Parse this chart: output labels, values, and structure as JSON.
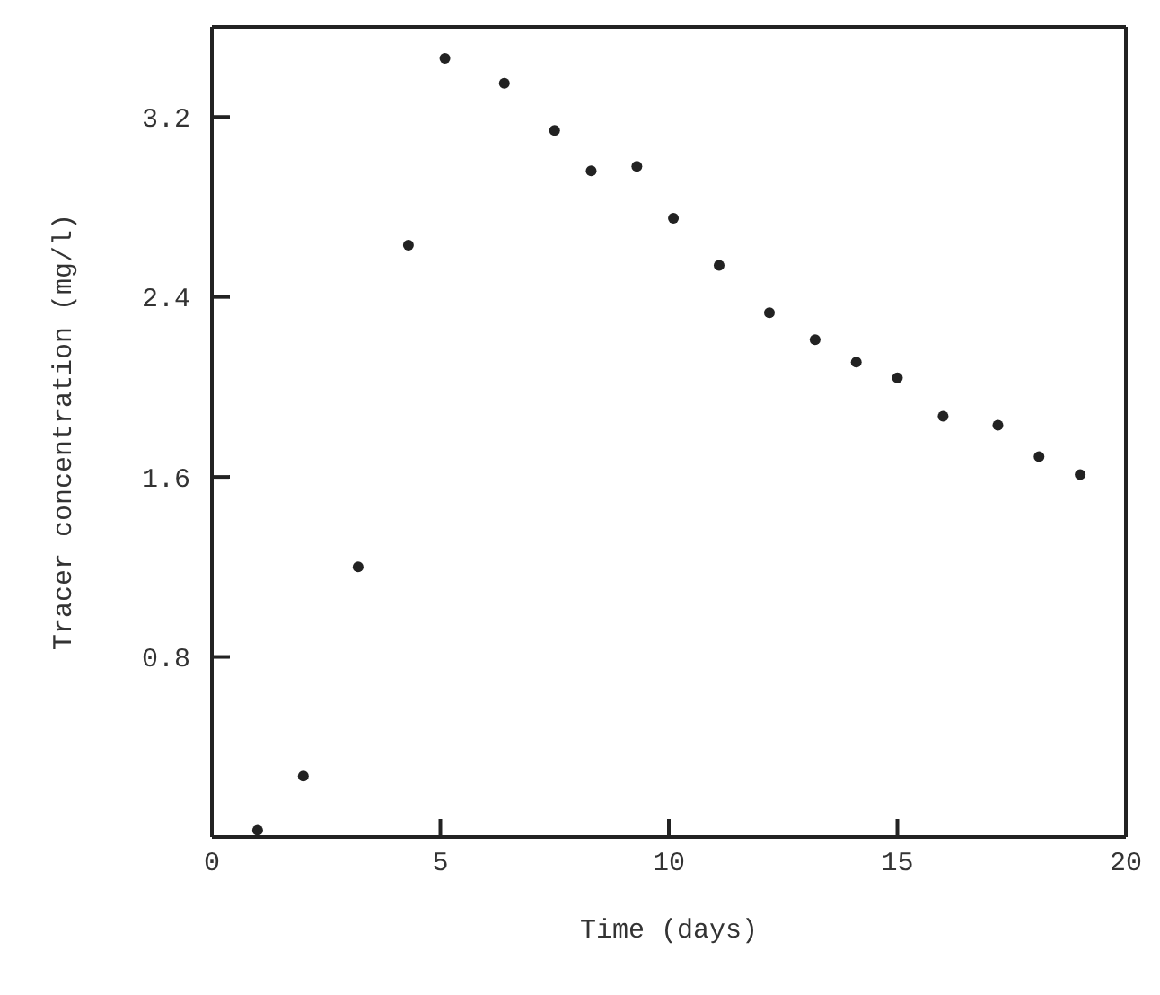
{
  "chart_data": {
    "type": "scatter",
    "xlabel": "Time (days)",
    "ylabel": "Tracer concentration (mg/l)",
    "x": [
      1.0,
      2.0,
      3.2,
      4.3,
      5.1,
      6.4,
      7.5,
      8.3,
      9.3,
      10.1,
      11.1,
      12.2,
      13.2,
      14.1,
      15.0,
      16.0,
      17.2,
      18.1,
      19.0
    ],
    "series": [
      {
        "color": "#222222",
        "values": [
          0.03,
          0.27,
          1.2,
          2.63,
          3.46,
          3.35,
          3.14,
          2.96,
          2.98,
          2.75,
          2.54,
          2.33,
          2.21,
          2.11,
          2.04,
          1.87,
          1.83,
          1.69,
          1.61
        ]
      }
    ],
    "xlim": [
      0,
      20
    ],
    "xticks": [
      0,
      5,
      10,
      15,
      20
    ],
    "ylim": [
      0,
      3.6
    ],
    "yticks": [
      0.8,
      1.6,
      2.4,
      3.2
    ],
    "marker": "circle",
    "grid": false,
    "legend": false
  }
}
